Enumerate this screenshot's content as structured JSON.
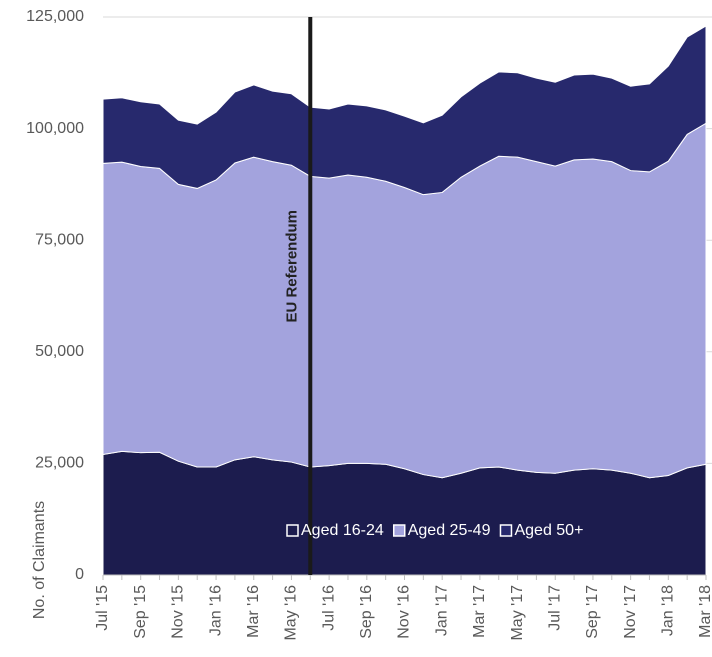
{
  "chart_data": {
    "type": "stacked_area",
    "y_label": "No. of Claimants",
    "categories": [
      "Jul '15",
      null,
      "Sep '15",
      null,
      "Nov '15",
      null,
      "Jan '16",
      null,
      "Mar '16",
      null,
      "May '16",
      null,
      "Jul '16",
      null,
      "Sep '16",
      null,
      "Nov '16",
      null,
      "Jan '17",
      null,
      "Mar '17",
      null,
      "May '17",
      null,
      "Jul '17",
      null,
      "Sep '17",
      null,
      "Nov '17",
      null,
      "Jan '18",
      null,
      "Mar '18"
    ],
    "series": [
      {
        "name": "Aged 16-24",
        "color": "#1c1c4e",
        "values": [
          27000,
          27700,
          27400,
          27500,
          25500,
          24200,
          24200,
          25800,
          26500,
          25800,
          25300,
          24200,
          24500,
          25000,
          25000,
          24800,
          23800,
          22500,
          21800,
          22800,
          24000,
          24200,
          23500,
          23000,
          22800,
          23500,
          23800,
          23500,
          22800,
          21800,
          22300,
          24000,
          24800
        ]
      },
      {
        "name": "Aged 25-49",
        "color": "#a3a3dd",
        "values": [
          65200,
          64800,
          64100,
          63600,
          62000,
          62400,
          64300,
          66500,
          67100,
          66800,
          66500,
          65100,
          64400,
          64600,
          64100,
          63400,
          63000,
          62700,
          63900,
          66300,
          67600,
          69600,
          70100,
          69600,
          68800,
          69500,
          69400,
          69100,
          67800,
          68500,
          70400,
          74700,
          76400
        ]
      },
      {
        "name": "Aged 50+",
        "color": "#27296d",
        "values": [
          14400,
          14400,
          14500,
          14400,
          14400,
          14400,
          15200,
          15900,
          16200,
          15800,
          16000,
          15500,
          15500,
          15900,
          16000,
          16000,
          16000,
          16100,
          17300,
          18000,
          18600,
          18900,
          18900,
          18700,
          18800,
          19000,
          19000,
          18700,
          18900,
          19700,
          21300,
          21800,
          21800
        ]
      }
    ],
    "ylim": [
      0,
      125000
    ],
    "yticks": [
      0,
      {
        "value": 25000,
        "label": "25,000"
      },
      {
        "value": 50000,
        "label": "50,000"
      },
      {
        "value": 75000,
        "label": "75,000"
      },
      {
        "value": 100000,
        "label": "100,000"
      },
      {
        "value": 125000,
        "label": "125,000"
      }
    ],
    "grid": true,
    "legend": "bottom-right",
    "annotation": {
      "text": "EU Referendum",
      "category_index": 11
    }
  }
}
